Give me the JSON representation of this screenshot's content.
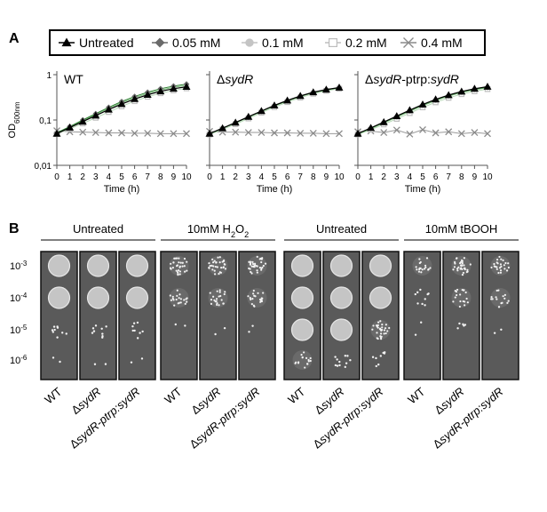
{
  "panel_labels": {
    "a": "A",
    "b": "B"
  },
  "legend": [
    {
      "label": "Untreated",
      "marker": "triangle-filled",
      "color": "#000000"
    },
    {
      "label": "0.05 mM",
      "marker": "diamond-filled",
      "color": "#6a6a6a"
    },
    {
      "label": "0.1 mM",
      "marker": "circle-filled",
      "color": "#c4c4c4"
    },
    {
      "label": "0.2 mM",
      "marker": "square-open",
      "color": "#bdbdbd"
    },
    {
      "label": "0.4 mM",
      "marker": "x-cross",
      "color": "#8a8a8a"
    }
  ],
  "chart_data": [
    {
      "type": "line",
      "title": "WT",
      "title_parts": [
        {
          "text": "WT",
          "italic": false
        }
      ],
      "xlabel": "Time (h)",
      "ylabel": "OD",
      "ylabel_sub": "600nm",
      "yscale": "log",
      "xlim": [
        0,
        10
      ],
      "ylim": [
        0.01,
        1
      ],
      "x_ticks": [
        "0",
        "1",
        "2",
        "3",
        "4",
        "5",
        "6",
        "7",
        "8",
        "9",
        "10"
      ],
      "y_ticks": [
        "0,01",
        "0,1",
        "1"
      ],
      "y_tick_values": [
        0.01,
        0.1,
        1
      ],
      "x": [
        0,
        1,
        2,
        3,
        4,
        5,
        6,
        7,
        8,
        9,
        10
      ],
      "series": [
        {
          "name": "Untreated",
          "values": [
            0.05,
            0.068,
            0.092,
            0.125,
            0.17,
            0.225,
            0.29,
            0.36,
            0.43,
            0.49,
            0.54
          ]
        },
        {
          "name": "0.05 mM",
          "values": [
            0.052,
            0.072,
            0.1,
            0.138,
            0.19,
            0.255,
            0.33,
            0.41,
            0.49,
            0.56,
            0.62
          ]
        },
        {
          "name": "0.1 mM",
          "values": [
            0.051,
            0.07,
            0.096,
            0.132,
            0.18,
            0.24,
            0.31,
            0.385,
            0.46,
            0.525,
            0.58
          ]
        },
        {
          "name": "0.2 mM",
          "values": [
            0.049,
            0.064,
            0.084,
            0.112,
            0.15,
            0.2,
            0.26,
            0.325,
            0.39,
            0.45,
            0.5
          ]
        },
        {
          "name": "0.4 mM",
          "values": [
            0.058,
            0.055,
            0.054,
            0.053,
            0.052,
            0.052,
            0.051,
            0.051,
            0.05,
            0.05,
            0.05
          ]
        }
      ]
    },
    {
      "type": "line",
      "title": "ΔsydR",
      "title_parts": [
        {
          "text": "Δ",
          "italic": false
        },
        {
          "text": "sydR",
          "italic": true
        }
      ],
      "xlabel": "Time (h)",
      "yscale": "log",
      "xlim": [
        0,
        10
      ],
      "ylim": [
        0.01,
        1
      ],
      "x_ticks": [
        "0",
        "1",
        "2",
        "3",
        "4",
        "5",
        "6",
        "7",
        "8",
        "9",
        "10"
      ],
      "y_tick_values": [
        0.01,
        0.1,
        1
      ],
      "x": [
        0,
        1,
        2,
        3,
        4,
        5,
        6,
        7,
        8,
        9,
        10
      ],
      "series": [
        {
          "name": "Untreated",
          "values": [
            0.05,
            0.066,
            0.088,
            0.118,
            0.158,
            0.21,
            0.27,
            0.34,
            0.41,
            0.47,
            0.52
          ]
        },
        {
          "name": "0.05 mM",
          "values": [
            0.05,
            0.066,
            0.087,
            0.117,
            0.156,
            0.207,
            0.267,
            0.335,
            0.405,
            0.465,
            0.515
          ]
        },
        {
          "name": "0.1 mM",
          "values": [
            0.049,
            0.065,
            0.086,
            0.115,
            0.154,
            0.204,
            0.262,
            0.33,
            0.4,
            0.46,
            0.51
          ]
        },
        {
          "name": "0.2 mM",
          "values": [
            0.048,
            0.062,
            0.081,
            0.108,
            0.145,
            0.192,
            0.248,
            0.312,
            0.38,
            0.44,
            0.49
          ]
        },
        {
          "name": "0.4 mM",
          "values": [
            0.056,
            0.054,
            0.054,
            0.053,
            0.053,
            0.052,
            0.052,
            0.051,
            0.051,
            0.05,
            0.05
          ]
        }
      ]
    },
    {
      "type": "line",
      "title": "ΔsydR-ptrp:sydR",
      "title_parts": [
        {
          "text": "Δ",
          "italic": false
        },
        {
          "text": "sydR",
          "italic": true
        },
        {
          "text": "-ptrp:",
          "italic": false
        },
        {
          "text": "sydR",
          "italic": true
        }
      ],
      "xlabel": "Time (h)",
      "yscale": "log",
      "xlim": [
        0,
        10
      ],
      "ylim": [
        0.01,
        1
      ],
      "x_ticks": [
        "0",
        "1",
        "2",
        "3",
        "4",
        "5",
        "6",
        "7",
        "8",
        "9",
        "10"
      ],
      "y_tick_values": [
        0.01,
        0.1,
        1
      ],
      "x": [
        0,
        1,
        2,
        3,
        4,
        5,
        6,
        7,
        8,
        9,
        10
      ],
      "series": [
        {
          "name": "Untreated",
          "values": [
            0.05,
            0.067,
            0.09,
            0.122,
            0.165,
            0.22,
            0.285,
            0.355,
            0.425,
            0.49,
            0.545
          ]
        },
        {
          "name": "0.05 mM",
          "values": [
            0.05,
            0.066,
            0.089,
            0.12,
            0.162,
            0.216,
            0.28,
            0.35,
            0.42,
            0.48,
            0.53
          ]
        },
        {
          "name": "0.1 mM",
          "values": [
            0.049,
            0.064,
            0.086,
            0.115,
            0.155,
            0.207,
            0.268,
            0.336,
            0.405,
            0.465,
            0.515
          ]
        },
        {
          "name": "0.2 mM",
          "values": [
            0.048,
            0.061,
            0.08,
            0.106,
            0.142,
            0.19,
            0.245,
            0.308,
            0.372,
            0.43,
            0.48
          ]
        },
        {
          "name": "0.4 mM",
          "values": [
            0.055,
            0.057,
            0.053,
            0.06,
            0.049,
            0.061,
            0.052,
            0.055,
            0.05,
            0.053,
            0.05
          ]
        }
      ]
    }
  ],
  "spot_assay": {
    "dilutions": [
      {
        "base": "10",
        "exp": "-3"
      },
      {
        "base": "10",
        "exp": "-4"
      },
      {
        "base": "10",
        "exp": "-5"
      },
      {
        "base": "10",
        "exp": "-6"
      }
    ],
    "groups": [
      {
        "title": "Untreated",
        "title_parts": [
          {
            "text": "Untreated"
          }
        ]
      },
      {
        "title": "10mM H2O2",
        "title_parts": [
          {
            "text": "10mM H"
          },
          {
            "text": "2",
            "sub": true
          },
          {
            "text": "O"
          },
          {
            "text": "2",
            "sub": true
          }
        ]
      },
      {
        "title": "Untreated",
        "title_parts": [
          {
            "text": "Untreated"
          }
        ]
      },
      {
        "title": "10mM tBOOH",
        "title_parts": [
          {
            "text": "10mM tBOOH"
          }
        ]
      }
    ],
    "strain_labels": [
      {
        "text": "WT",
        "parts": [
          {
            "text": "WT",
            "italic": false
          }
        ]
      },
      {
        "text": "ΔsydR",
        "parts": [
          {
            "text": "Δ",
            "italic": false
          },
          {
            "text": "sydR",
            "italic": true
          }
        ]
      },
      {
        "text": "ΔsydR-ptrp:sydR",
        "parts": [
          {
            "text": "Δ",
            "italic": false
          },
          {
            "text": "sydR",
            "italic": true
          },
          {
            "text": "-ptrp:",
            "italic": true
          },
          {
            "text": "sydR",
            "italic": true
          }
        ]
      }
    ],
    "growth_levels": [
      [
        [
          1.0,
          0.95,
          0.3,
          0.05
        ],
        [
          1.0,
          0.95,
          0.3,
          0.05
        ],
        [
          1.0,
          0.9,
          0.25,
          0.05
        ]
      ],
      [
        [
          0.75,
          0.5,
          0.05,
          0.0
        ],
        [
          0.8,
          0.55,
          0.05,
          0.0
        ],
        [
          0.8,
          0.55,
          0.05,
          0.0
        ]
      ],
      [
        [
          1.0,
          1.0,
          0.95,
          0.4
        ],
        [
          1.0,
          1.0,
          0.85,
          0.35
        ],
        [
          1.0,
          0.95,
          0.75,
          0.25
        ]
      ],
      [
        [
          0.45,
          0.3,
          0.05,
          0.0
        ],
        [
          0.8,
          0.45,
          0.15,
          0.0
        ],
        [
          0.6,
          0.4,
          0.05,
          0.0
        ]
      ]
    ],
    "colors": {
      "panel_bg": "#5a5a5a",
      "panel_border": "#111111",
      "colony": "#f2f2f2"
    }
  }
}
